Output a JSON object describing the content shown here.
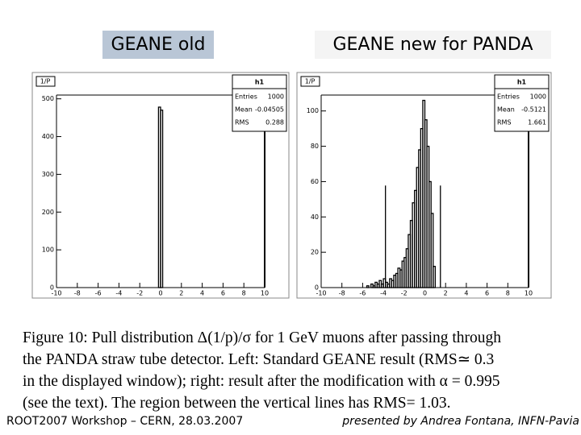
{
  "slide": {
    "labels": [
      "GEANE old",
      "GEANE new for PANDA"
    ],
    "caption": [
      "Figure 10: Pull distribution Δ(1/p)/σ for 1 GeV muons after passing through",
      "the PANDA straw tube detector. Left: Standard GEANE result (RMS≃ 0.3",
      "in the displayed window); right: result after the modification with α = 0.995",
      "(see the text). The region between the vertical lines has RMS= 1.03."
    ],
    "footer_left": "ROOT2007 Workshop – CERN, 28.03.2007",
    "footer_right": "presented by Andrea Fontana, INFN-Pavia"
  },
  "chart_data": [
    {
      "type": "histogram",
      "corner_label": "1/P",
      "stats_title": "h1",
      "stats": [
        {
          "label": "Entries",
          "value": 1000
        },
        {
          "label": "Mean",
          "value": -0.04505
        },
        {
          "label": "RMS",
          "value": 0.288
        }
      ],
      "bins": [
        -0.2,
        0,
        0.2
      ],
      "counts": [
        478,
        470
      ],
      "color": "#000000",
      "xlim": [
        -10,
        10
      ],
      "xticks": [
        -10,
        -8,
        -6,
        -4,
        -2,
        0,
        2,
        4,
        6,
        8,
        10
      ],
      "ylim": [
        0,
        510
      ],
      "yticks": [
        0,
        100,
        200,
        300,
        400,
        500
      ]
    },
    {
      "type": "histogram",
      "corner_label": "1/P",
      "stats_title": "h1",
      "stats": [
        {
          "label": "Entries",
          "value": 1000
        },
        {
          "label": "Mean",
          "value": -0.5121
        },
        {
          "label": "RMS",
          "value": 1.661
        }
      ],
      "bins": [
        -6,
        -5.8,
        -5.6,
        -5.4,
        -5.2,
        -5,
        -4.8,
        -4.6,
        -4.4,
        -4.2,
        -4,
        -3.8,
        -3.6,
        -3.4,
        -3.2,
        -3,
        -2.8,
        -2.6,
        -2.4,
        -2.2,
        -2,
        -1.8,
        -1.6,
        -1.4,
        -1.2,
        -1,
        -0.8,
        -0.6,
        -0.4,
        -0.2,
        0,
        0.2,
        0.4,
        0.6,
        0.8,
        1,
        1.2,
        1.4,
        1.6,
        1.8,
        2
      ],
      "counts": [
        0,
        0,
        1,
        0,
        2,
        1,
        3,
        2,
        4,
        2,
        5,
        3,
        2,
        5,
        4,
        7,
        8,
        11,
        10,
        15,
        17,
        22,
        30,
        38,
        48,
        55,
        68,
        78,
        90,
        106,
        95,
        80,
        60,
        42,
        12,
        0,
        0,
        0,
        0,
        0
      ],
      "color": "#000000",
      "vertical_lines": [
        -3.8,
        1.5
      ],
      "xlim": [
        -10,
        10
      ],
      "xticks": [
        -10,
        -8,
        -6,
        -4,
        -2,
        0,
        2,
        4,
        6,
        8,
        10
      ],
      "ylim": [
        0,
        109
      ],
      "yticks": [
        0,
        20,
        40,
        60,
        80,
        100
      ]
    }
  ]
}
